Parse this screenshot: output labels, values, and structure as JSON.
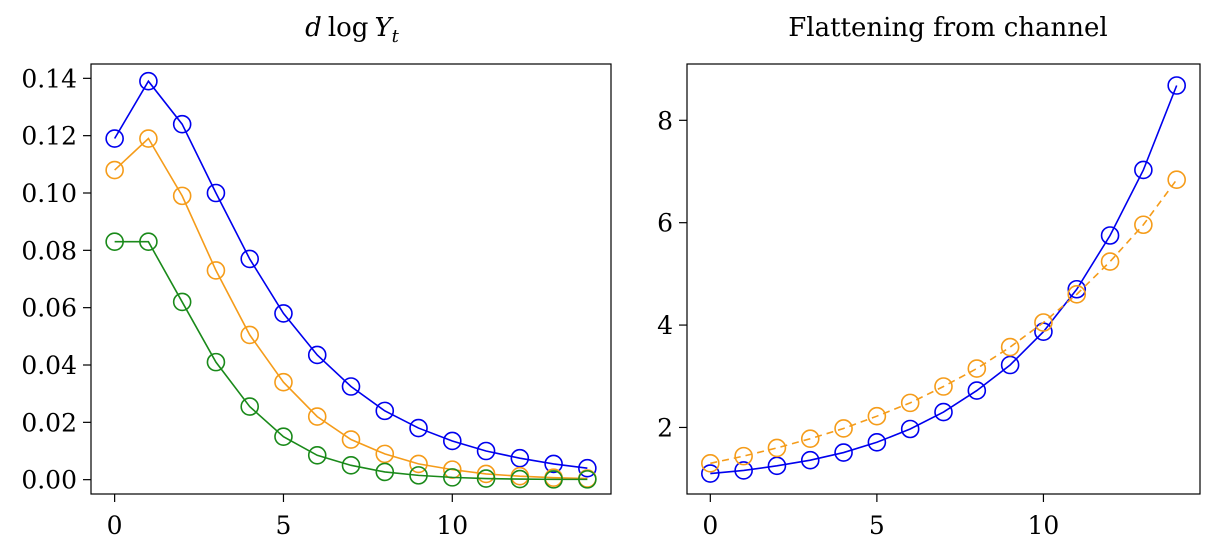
{
  "chart_data": [
    {
      "type": "line",
      "title": "d log Y_t",
      "title_parts": {
        "d": "d",
        "log": "log",
        "var": "Y",
        "sub": "t"
      },
      "xlabel": "",
      "ylabel": "",
      "xlim": [
        -0.7,
        14.7
      ],
      "ylim": [
        -0.005,
        0.145
      ],
      "xticks": [
        0,
        5,
        10
      ],
      "xtick_labels": [
        "0",
        "5",
        "10"
      ],
      "yticks": [
        0.0,
        0.02,
        0.04,
        0.06,
        0.08,
        0.1,
        0.12,
        0.14
      ],
      "ytick_labels": [
        "0.00",
        "0.02",
        "0.04",
        "0.06",
        "0.08",
        "0.10",
        "0.12",
        "0.14"
      ],
      "grid": false,
      "x": [
        0,
        1,
        2,
        3,
        4,
        5,
        6,
        7,
        8,
        9,
        10,
        11,
        12,
        13,
        14
      ],
      "series": [
        {
          "color": "#0000ee",
          "dash": "solid",
          "values": [
            0.119,
            0.139,
            0.124,
            0.1,
            0.077,
            0.058,
            0.0435,
            0.0325,
            0.024,
            0.018,
            0.0135,
            0.01,
            0.0075,
            0.0055,
            0.004
          ]
        },
        {
          "color": "#f59c1a",
          "dash": "solid",
          "values": [
            0.108,
            0.119,
            0.099,
            0.073,
            0.0505,
            0.034,
            0.022,
            0.014,
            0.009,
            0.0055,
            0.0035,
            0.002,
            0.0012,
            0.0007,
            0.0004
          ]
        },
        {
          "color": "#1a8a1a",
          "dash": "solid",
          "values": [
            0.083,
            0.083,
            0.062,
            0.041,
            0.0255,
            0.015,
            0.0085,
            0.005,
            0.0027,
            0.0015,
            0.0008,
            0.0004,
            0.0002,
            0.0001,
            0.0001
          ]
        }
      ]
    },
    {
      "type": "line",
      "title": "Flattening from channel",
      "xlabel": "",
      "ylabel": "",
      "xlim": [
        -0.7,
        14.7
      ],
      "ylim": [
        0.7,
        9.1
      ],
      "xticks": [
        0,
        5,
        10
      ],
      "xtick_labels": [
        "0",
        "5",
        "10"
      ],
      "yticks": [
        2,
        4,
        6,
        8
      ],
      "ytick_labels": [
        "2",
        "4",
        "6",
        "8"
      ],
      "grid": false,
      "x": [
        0,
        1,
        2,
        3,
        4,
        5,
        6,
        7,
        8,
        9,
        10,
        11,
        12,
        13,
        14
      ],
      "series": [
        {
          "color": "#0000ee",
          "dash": "solid",
          "values": [
            1.1,
            1.16,
            1.25,
            1.36,
            1.51,
            1.71,
            1.97,
            2.3,
            2.72,
            3.22,
            3.87,
            4.7,
            5.75,
            7.03,
            8.68
          ]
        },
        {
          "color": "#f59c1a",
          "dash": "dashed",
          "values": [
            1.3,
            1.44,
            1.6,
            1.78,
            1.98,
            2.22,
            2.48,
            2.8,
            3.15,
            3.57,
            4.05,
            4.6,
            5.24,
            5.96,
            6.84
          ]
        }
      ]
    }
  ]
}
